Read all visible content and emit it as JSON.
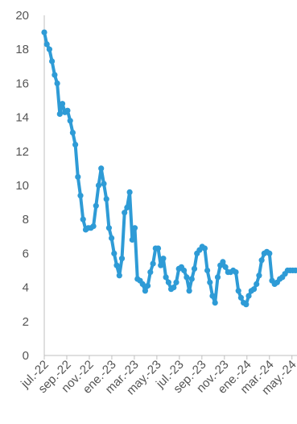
{
  "chart_data": {
    "type": "line",
    "title": "",
    "xlabel": "",
    "ylabel": "",
    "ylim": [
      0,
      20
    ],
    "yticks": [
      0,
      2,
      4,
      6,
      8,
      10,
      12,
      14,
      16,
      18,
      20
    ],
    "x_tick_labels": [
      "jul.-22",
      "sep.-22",
      "nov.-22",
      "ene.-23",
      "mar.-23",
      "may.-23",
      "jul.-23",
      "sep.-23",
      "nov.-23",
      "ene.-24",
      "mar.-24",
      "may.-24"
    ],
    "grid": false,
    "legend": "none",
    "line_color": "#2E9BD6",
    "x_weeks": [
      0,
      1,
      2,
      3,
      4,
      5,
      6,
      7,
      8,
      9,
      10,
      11,
      12,
      13,
      14,
      15,
      16,
      17,
      18,
      19,
      20,
      21,
      22,
      23,
      24,
      25,
      26,
      27,
      28,
      29,
      30,
      31,
      32,
      33,
      34,
      35,
      36,
      37,
      38,
      39,
      40,
      41,
      42,
      43,
      44,
      45,
      46,
      47,
      48,
      49,
      50,
      51,
      52,
      53,
      54,
      55,
      56,
      57,
      58,
      59,
      60,
      61,
      62,
      63,
      64,
      65,
      66,
      67,
      68,
      69,
      70,
      71,
      72,
      73,
      74,
      75,
      76,
      77,
      78,
      79,
      80,
      81,
      82,
      83,
      84,
      85,
      86,
      87,
      88,
      89,
      90,
      91,
      92,
      93,
      94,
      95,
      96,
      97,
      98,
      99,
      100,
      101,
      102
    ],
    "values": [
      19.0,
      18.3,
      18.0,
      17.3,
      16.5,
      16.0,
      14.2,
      14.8,
      14.3,
      14.4,
      13.8,
      13.1,
      12.4,
      10.5,
      9.4,
      8.0,
      7.4,
      7.5,
      7.5,
      7.6,
      8.8,
      10.0,
      11.0,
      10.1,
      9.2,
      7.5,
      6.9,
      6.0,
      5.3,
      4.7,
      5.7,
      8.4,
      8.7,
      9.6,
      6.8,
      7.5,
      4.5,
      4.4,
      4.2,
      3.8,
      4.1,
      4.9,
      5.4,
      6.3,
      6.3,
      5.3,
      5.7,
      4.6,
      4.3,
      3.9,
      4.0,
      4.3,
      5.1,
      5.2,
      5.0,
      4.6,
      3.8,
      4.5,
      5.1,
      6.0,
      6.2,
      6.4,
      6.3,
      5.0,
      4.3,
      3.5,
      3.1,
      4.6,
      5.3,
      5.5,
      5.2,
      4.9,
      4.9,
      5.0,
      4.9,
      3.8,
      3.4,
      3.1,
      3.0,
      3.5,
      3.8,
      3.9,
      4.2,
      4.7,
      5.6,
      6.0,
      6.1,
      6.0,
      4.4,
      4.2,
      4.3,
      4.5,
      4.6,
      4.8,
      5.0,
      5.0,
      5.0,
      5.0,
      5.0,
      5.0,
      5.0,
      5.0,
      5.0
    ]
  }
}
